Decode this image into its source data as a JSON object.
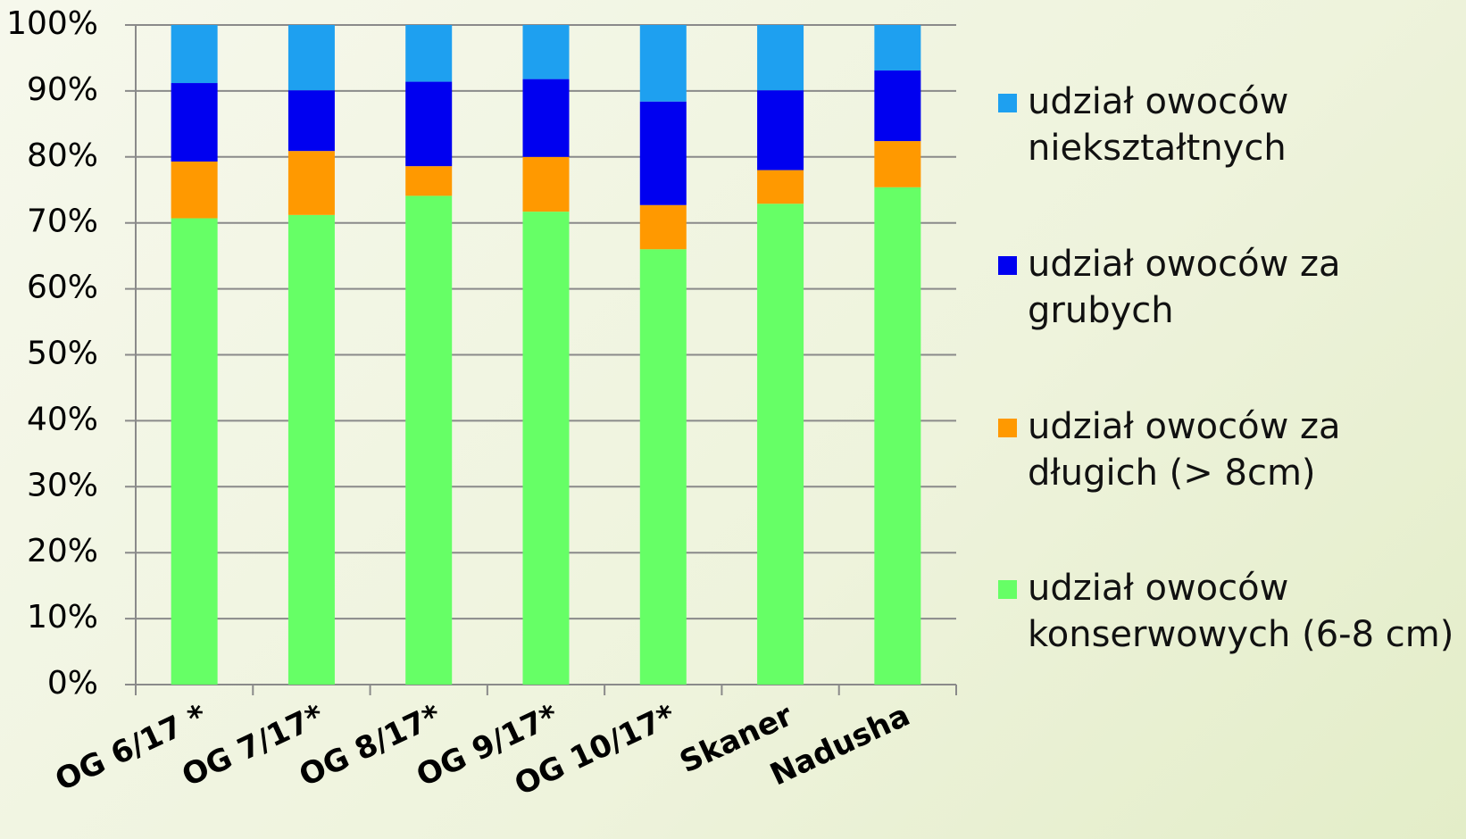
{
  "chart_data": {
    "type": "stacked_bar",
    "categories": [
      "OG 6/17 *",
      "OG 7/17*",
      "OG 8/17*",
      "OG 9/17*",
      "OG 10/17*",
      "Skaner",
      "Nadusha"
    ],
    "series": [
      {
        "name": "udział owoców konserwowych (6-8 cm)",
        "color": "#66ff66",
        "values": [
          70.7,
          71.2,
          74.1,
          71.7,
          66.0,
          72.9,
          75.4
        ]
      },
      {
        "name": "udział owoców za długich (> 8cm)",
        "color": "#ff9900",
        "values": [
          8.6,
          9.7,
          4.5,
          8.3,
          6.7,
          5.1,
          7.0
        ]
      },
      {
        "name": "udział owoców za grubych",
        "color": "#0000f0",
        "values": [
          11.9,
          9.2,
          12.8,
          11.8,
          15.7,
          12.1,
          10.7
        ]
      },
      {
        "name": "udział owoców niekształtnych",
        "color": "#1ea0f0",
        "values": [
          8.8,
          9.9,
          8.6,
          8.2,
          11.6,
          9.9,
          6.9
        ]
      }
    ],
    "ylim": [
      0,
      100
    ],
    "yticks": [
      {
        "value": 0,
        "label": "0%"
      },
      {
        "value": 10,
        "label": "10%"
      },
      {
        "value": 20,
        "label": "20%"
      },
      {
        "value": 30,
        "label": "30%"
      },
      {
        "value": 40,
        "label": "40%"
      },
      {
        "value": 50,
        "label": "50%"
      },
      {
        "value": 60,
        "label": "60%"
      },
      {
        "value": 70,
        "label": "70%"
      },
      {
        "value": 80,
        "label": "80%"
      },
      {
        "value": 90,
        "label": "90%"
      },
      {
        "value": 100,
        "label": "100%"
      }
    ],
    "grid": true,
    "legend": "right"
  }
}
